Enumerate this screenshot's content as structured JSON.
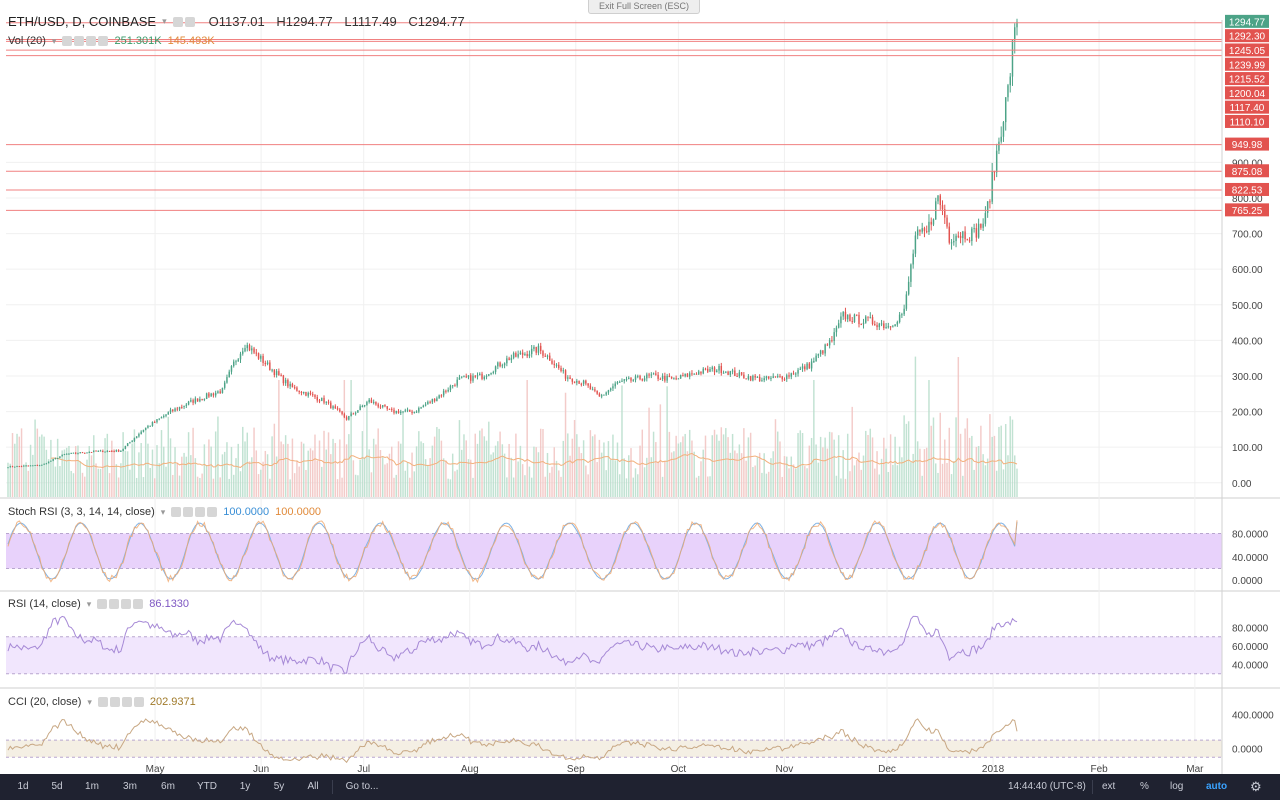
{
  "ui": {
    "fullscreen_hint": "Exit Full Screen (ESC)",
    "timeframes": [
      "1d",
      "5d",
      "1m",
      "3m",
      "6m",
      "YTD",
      "1y",
      "5y",
      "All"
    ],
    "goto": "Go to...",
    "clock": "14:44:40 (UTC-8)",
    "right_buttons": [
      "ext",
      "%",
      "log",
      "auto"
    ],
    "colors": {
      "up": "#4ca387",
      "down": "#e2534f",
      "hline": "#f08080",
      "rsi": "#7e57c2",
      "cci": "#c8a884"
    }
  },
  "chart_data": [
    {
      "type": "candlestick",
      "title": "ETH/USD, D, COINBASE",
      "ohlc": {
        "open": "O1137.01",
        "high": "H1294.77",
        "low": "L1117.49",
        "close": "C1294.77"
      },
      "x_ticks": [
        "May",
        "Jun",
        "Jul",
        "Aug",
        "Sep",
        "Oct",
        "Nov",
        "Dec",
        "2018",
        "Feb",
        "Mar"
      ],
      "y_ticks": [
        "0.00",
        "100.00",
        "200.00",
        "300.00",
        "400.00",
        "500.00",
        "600.00",
        "700.00",
        "800.00",
        "900.00"
      ],
      "ylim": [
        -40,
        1300
      ],
      "price_levels": [
        "1294.77",
        "1292.30",
        "1245.05",
        "1239.99",
        "1215.52",
        "1200.04",
        "1117.40",
        "1110.10",
        "949.98",
        "875.08",
        "822.53",
        "765.25"
      ],
      "level_values": [
        1294.77,
        1292.3,
        1245.05,
        1239.99,
        1215.52,
        1200.04,
        1117.4,
        1110.1,
        949.98,
        875.08,
        822.53,
        765.25
      ],
      "drawn_lines": [
        1292.3,
        1245.05,
        1239.99,
        1215.52,
        1200.04,
        949.98,
        875.08,
        822.53,
        765.25
      ],
      "close_anchors": [
        [
          0,
          45
        ],
        [
          15,
          50
        ],
        [
          25,
          80
        ],
        [
          38,
          88
        ],
        [
          50,
          90
        ],
        [
          60,
          150
        ],
        [
          72,
          200
        ],
        [
          82,
          230
        ],
        [
          95,
          260
        ],
        [
          100,
          335
        ],
        [
          105,
          390
        ],
        [
          115,
          330
        ],
        [
          125,
          270
        ],
        [
          140,
          230
        ],
        [
          150,
          180
        ],
        [
          160,
          230
        ],
        [
          170,
          200
        ],
        [
          180,
          200
        ],
        [
          190,
          240
        ],
        [
          200,
          290
        ],
        [
          210,
          300
        ],
        [
          222,
          350
        ],
        [
          235,
          375
        ],
        [
          240,
          350
        ],
        [
          247,
          300
        ],
        [
          255,
          280
        ],
        [
          262,
          240
        ],
        [
          270,
          280
        ],
        [
          285,
          300
        ],
        [
          295,
          290
        ],
        [
          305,
          310
        ],
        [
          315,
          320
        ],
        [
          325,
          300
        ],
        [
          335,
          290
        ],
        [
          345,
          300
        ],
        [
          355,
          330
        ],
        [
          365,
          400
        ],
        [
          370,
          470
        ],
        [
          375,
          460
        ],
        [
          385,
          450
        ],
        [
          390,
          440
        ],
        [
          397,
          480
        ],
        [
          402,
          690
        ],
        [
          407,
          700
        ],
        [
          412,
          800
        ],
        [
          415,
          750
        ],
        [
          417,
          690
        ],
        [
          420,
          700
        ],
        [
          428,
          700
        ],
        [
          433,
          740
        ],
        [
          436,
          850
        ],
        [
          440,
          1000
        ],
        [
          443,
          1100
        ],
        [
          445,
          1217
        ],
        [
          447,
          1294.77
        ]
      ],
      "candle_count": 448,
      "day_start": "2017-03-19"
    },
    {
      "type": "bar",
      "title": "Vol (20)",
      "values_text": [
        "251.301K",
        "145.493K"
      ]
    },
    {
      "type": "line",
      "title": "Stoch RSI (3, 3, 14, 14, close)",
      "values_text": [
        "100.0000",
        "100.0000"
      ],
      "y_ticks": [
        "80.0000",
        "40.0000",
        "0.0000"
      ],
      "ylim": [
        -10,
        110
      ],
      "band": [
        20,
        80
      ]
    },
    {
      "type": "line",
      "title": "RSI (14, close)",
      "values_text": [
        "86.1330"
      ],
      "y_ticks": [
        "80.0000",
        "60.0000",
        "40.0000"
      ],
      "ylim": [
        20,
        100
      ],
      "band": [
        30,
        70
      ]
    },
    {
      "type": "line",
      "title": "CCI (20, close)",
      "values_text": [
        "202.9371"
      ],
      "y_ticks": [
        "400.0000",
        "0.0000"
      ],
      "ylim": [
        -250,
        500
      ],
      "band": [
        -100,
        100
      ]
    }
  ]
}
